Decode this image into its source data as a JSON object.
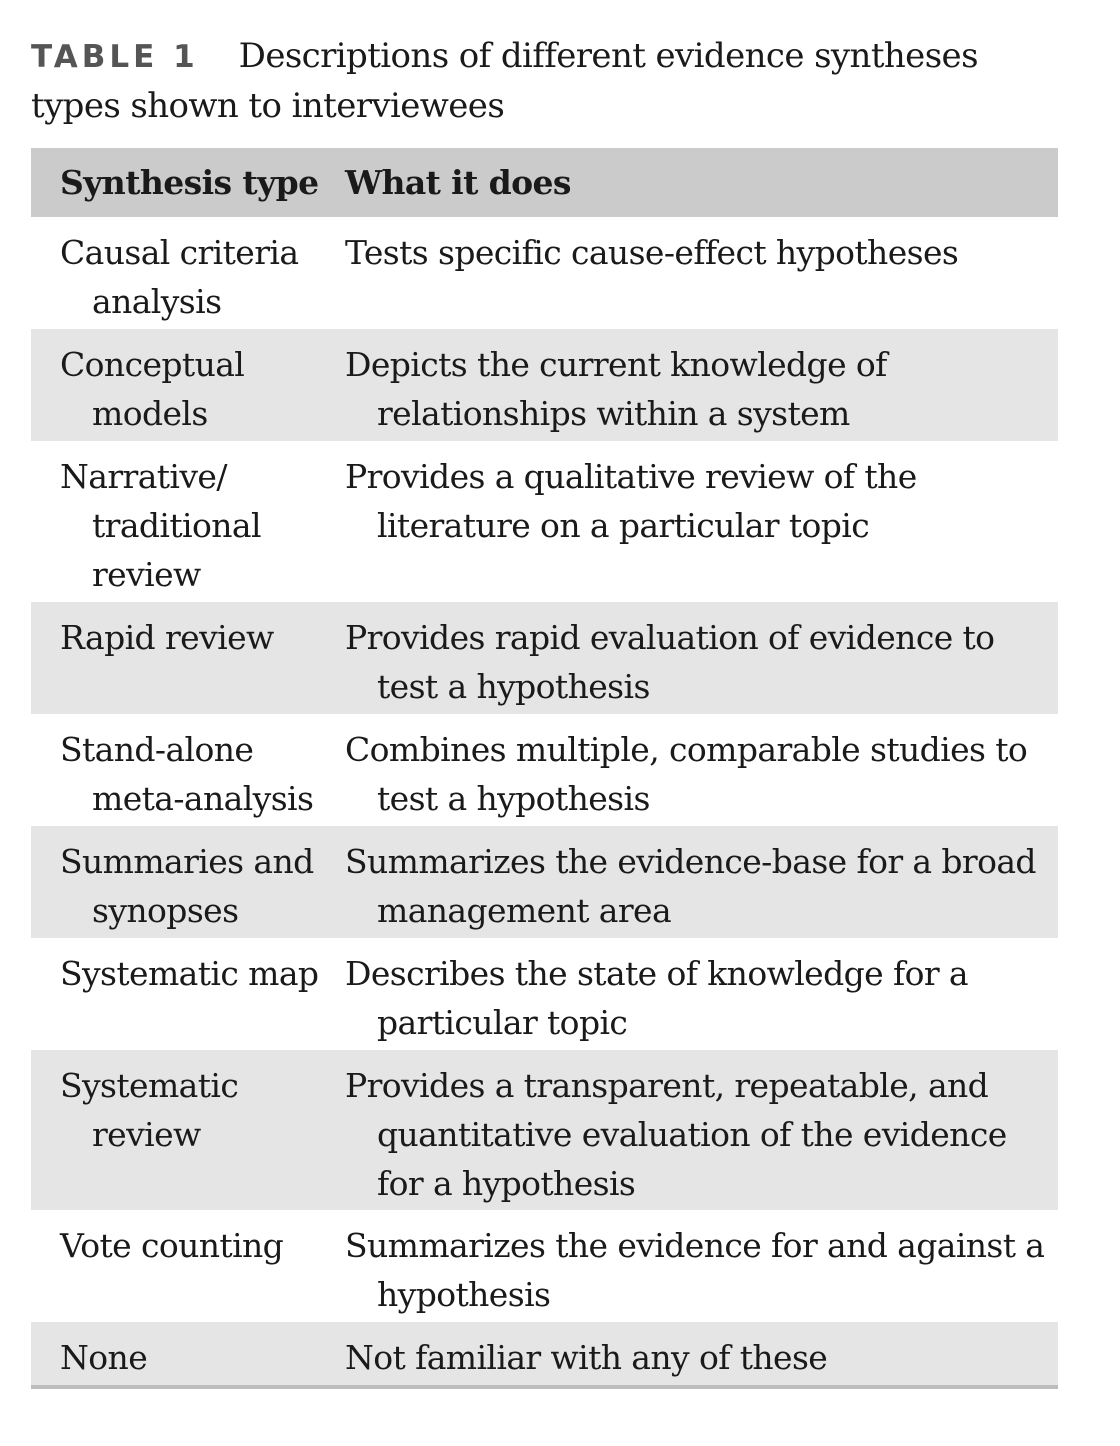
{
  "caption": {
    "label": "TABLE 1",
    "text": "Descriptions of different evidence syntheses types shown to interviewees"
  },
  "table": {
    "headers": {
      "type": "Synthesis type",
      "description": "What it does"
    },
    "rows": [
      {
        "type": "Causal criteria analysis",
        "description": "Tests specific cause-effect hypotheses"
      },
      {
        "type": "Conceptual models",
        "description": "Depicts the current knowledge of relationships within a system"
      },
      {
        "type": "Narrative/ traditional review",
        "description": "Provides a qualitative review of the literature on a particular topic"
      },
      {
        "type": "Rapid review",
        "description": "Provides rapid evaluation of evidence to test a hypothesis"
      },
      {
        "type": "Stand-alone meta-analysis",
        "description": "Combines multiple, comparable studies to test a hypothesis"
      },
      {
        "type": "Summaries and synopses",
        "description": "Summarizes the evidence-base for a broad management area"
      },
      {
        "type": "Systematic map",
        "description": "Describes the state of knowledge for a particular topic"
      },
      {
        "type": "Systematic review",
        "description": "Provides a transparent, repeatable, and quantitative evaluation of the evidence for a hypothesis"
      },
      {
        "type": "Vote counting",
        "description": "Summarizes the evidence for and against a hypothesis"
      },
      {
        "type": "None",
        "description": "Not familiar with any of these"
      }
    ]
  }
}
